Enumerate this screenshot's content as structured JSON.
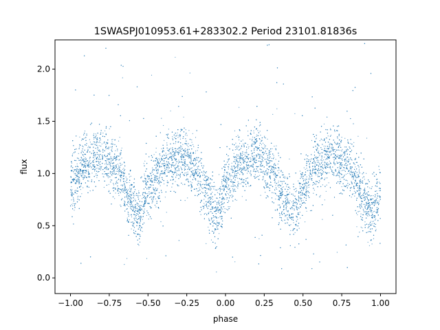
{
  "chart_data": {
    "type": "scatter",
    "title": "1SWASPJ010953.61+283302.2 Period 23101.81836s",
    "xlabel": "phase",
    "ylabel": "flux",
    "xlim": [
      -1.1,
      1.1
    ],
    "ylim": [
      -0.15,
      2.28
    ],
    "xticks": [
      -1.0,
      -0.75,
      -0.5,
      -0.25,
      0.0,
      0.25,
      0.5,
      0.75,
      1.0
    ],
    "xtick_labels": [
      "−1.00",
      "−0.75",
      "−0.50",
      "−0.25",
      "0.00",
      "0.25",
      "0.50",
      "0.75",
      "1.00"
    ],
    "yticks": [
      0.0,
      0.5,
      1.0,
      1.5,
      2.0
    ],
    "ytick_labels": [
      "0.0",
      "0.5",
      "1.0",
      "1.5",
      "2.0"
    ],
    "grid": false,
    "point_color": "#1f77b4",
    "series": [
      {
        "x_range": [
          -1.0,
          1.0
        ],
        "profile_phase": [
          -1.0,
          -0.9,
          -0.8,
          -0.7,
          -0.62,
          -0.56,
          -0.5,
          -0.4,
          -0.3,
          -0.2,
          -0.12,
          -0.06,
          0.0,
          0.1,
          0.2,
          0.3,
          0.38,
          0.44,
          0.5,
          0.6,
          0.7,
          0.8,
          0.88,
          0.94,
          1.0
        ],
        "profile_flux": [
          0.9,
          1.1,
          1.18,
          1.05,
          0.78,
          0.58,
          0.85,
          1.08,
          1.18,
          1.05,
          0.8,
          0.6,
          0.85,
          1.08,
          1.18,
          1.05,
          0.78,
          0.58,
          0.85,
          1.08,
          1.18,
          1.05,
          0.8,
          0.6,
          0.82
        ]
      }
    ]
  }
}
